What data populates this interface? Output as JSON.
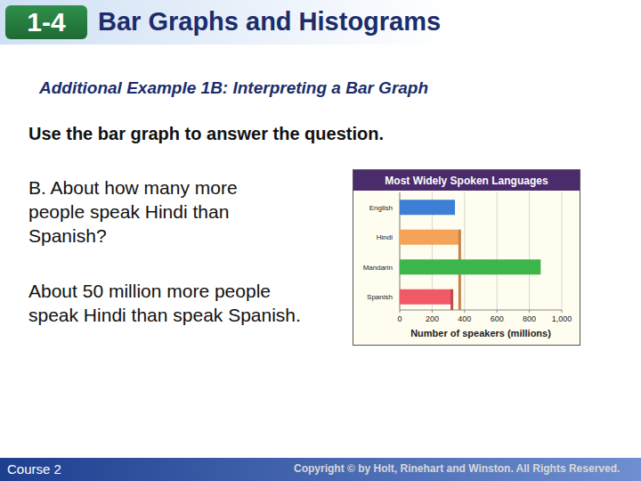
{
  "slide": {
    "section": "1-4",
    "title": "Bar Graphs and Histograms",
    "example": "Additional Example 1B: Interpreting a Bar Graph",
    "instruction": "Use the bar graph to answer the question.",
    "question": "B. About how many more people speak Hindi than Spanish?",
    "answer": "About 50 million more people speak Hindi than speak Spanish.",
    "footer_left": "Course 2",
    "footer_right": "Copyright © by Holt, Rinehart and Winston. All Rights Reserved."
  },
  "chart_data": {
    "type": "bar",
    "orientation": "horizontal",
    "title": "Most Widely Spoken Languages",
    "x_label": "Number of speakers (millions)",
    "categories": [
      "English",
      "Hindi",
      "Mandarin",
      "Spanish"
    ],
    "values": [
      341,
      370,
      870,
      322
    ],
    "colors": [
      "#3d7fd6",
      "#f6a35a",
      "#3cb54a",
      "#ef5a64"
    ],
    "xlim": [
      0,
      1000
    ],
    "xticks": [
      0,
      200,
      400,
      600,
      800,
      {
        "value": 1000,
        "label": "1,000"
      }
    ],
    "grid": true
  }
}
